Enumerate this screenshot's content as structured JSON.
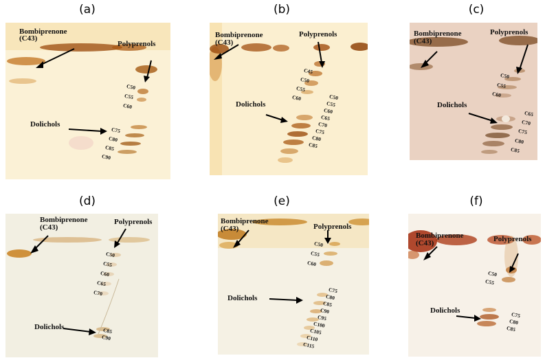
{
  "panels": [
    {
      "letter": "(a)",
      "labels": {
        "bombiprenone": "Bombiprenone",
        "c43": "(C43)",
        "polyprenols": "Polyprenols",
        "dolichols": "Dolichols"
      },
      "polyprenol_chain": [
        "C50",
        "C55",
        "C60"
      ],
      "dolichol_chain": [
        "C75",
        "C80",
        "C85",
        "C90"
      ]
    },
    {
      "letter": "(b)",
      "labels": {
        "bombiprenone": "Bombiprenone",
        "c43": "(C43)",
        "polyprenols": "Polyprenols",
        "dolichols": "Dolichols"
      },
      "polyprenol_chain": [
        "C45",
        "C50",
        "C55",
        "C60"
      ],
      "dolichol_chain": [
        "C50",
        "C55",
        "C60",
        "C65",
        "C70",
        "C75",
        "C80",
        "C85"
      ]
    },
    {
      "letter": "(c)",
      "labels": {
        "bombiprenone": "Bombiprenone",
        "c43": "(C43)",
        "polyprenols": "Polyprenols",
        "dolichols": "Dolichols"
      },
      "polyprenol_chain": [
        "C50",
        "C55",
        "C60"
      ],
      "dolichol_chain": [
        "C65",
        "C70",
        "C75",
        "C80",
        "C85"
      ]
    },
    {
      "letter": "(d)",
      "labels": {
        "bombiprenone": "Bombiprenone",
        "c43": "(C43)",
        "polyprenols": "Polyprenols",
        "dolichols": "Dolichols"
      },
      "polyprenol_chain": [
        "C50",
        "C55",
        "C60",
        "C65",
        "C70"
      ],
      "dolichol_chain": [
        "C85",
        "C90"
      ]
    },
    {
      "letter": "(e)",
      "labels": {
        "bombiprenone": "Bombiprenone",
        "c43": "(C43)",
        "polyprenols": "Polyprenols",
        "dolichols": "Dolichols"
      },
      "polyprenol_chain": [
        "C50",
        "C55",
        "C60"
      ],
      "dolichol_chain": [
        "C75",
        "C80",
        "C85",
        "C90",
        "C95",
        "C100",
        "C105",
        "C110",
        "C115"
      ]
    },
    {
      "letter": "(f)",
      "labels": {
        "bombiprenone": "Bombiprenone",
        "c43": "(C43)",
        "polyprenols": "Polyprenols",
        "dolichols": "Dolichols"
      },
      "polyprenol_chain": [
        "C50",
        "C55"
      ],
      "dolichol_chain": [
        "C75",
        "C80",
        "C85"
      ]
    }
  ]
}
